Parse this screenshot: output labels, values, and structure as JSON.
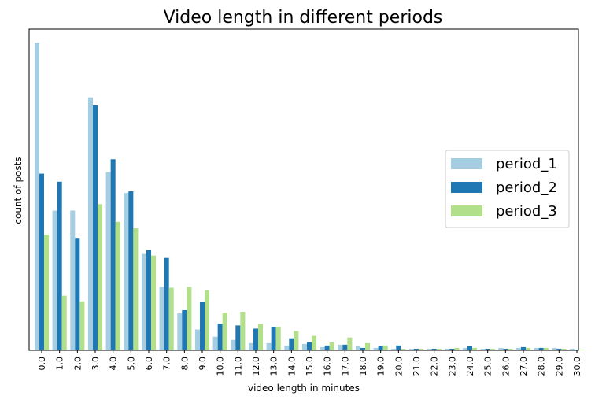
{
  "chart_data": {
    "type": "bar",
    "title": "Video length in different periods",
    "xlabel": "video length in minutes",
    "ylabel": "count of posts",
    "categories": [
      "0.0",
      "1.0",
      "2.0",
      "3.0",
      "4.0",
      "5.0",
      "6.0",
      "7.0",
      "8.0",
      "9.0",
      "10.0",
      "11.0",
      "12.0",
      "13.0",
      "14.0",
      "15.0",
      "16.0",
      "17.0",
      "18.0",
      "19.0",
      "20.0",
      "21.0",
      "22.0",
      "23.0",
      "24.0",
      "25.0",
      "26.0",
      "27.0",
      "28.0",
      "29.0",
      "30.0"
    ],
    "ylim": [
      0,
      400
    ],
    "y_ticks_shown": false,
    "grid": false,
    "legend_position": "right",
    "series": [
      {
        "name": "period_1",
        "color": "#a6cee3",
        "values": [
          383,
          174,
          174,
          315,
          222,
          196,
          120,
          79,
          46,
          26,
          17,
          13,
          9,
          9,
          6,
          8,
          4,
          7,
          5,
          3,
          2,
          2,
          2,
          2,
          3,
          2,
          3,
          3,
          3,
          3,
          2
        ]
      },
      {
        "name": "period_2",
        "color": "#1f78b4",
        "values": [
          220,
          210,
          140,
          305,
          238,
          198,
          125,
          115,
          50,
          60,
          33,
          31,
          27,
          29,
          15,
          10,
          6,
          7,
          3,
          5,
          6,
          2,
          2,
          2,
          5,
          2,
          2,
          4,
          3,
          2,
          1
        ]
      },
      {
        "name": "period_3",
        "color": "#b2df8a",
        "values": [
          144,
          68,
          61,
          182,
          160,
          152,
          118,
          78,
          79,
          75,
          47,
          48,
          33,
          29,
          24,
          18,
          10,
          16,
          9,
          6,
          2,
          2,
          2,
          3,
          3,
          2,
          2,
          3,
          3,
          2,
          1
        ]
      }
    ]
  }
}
